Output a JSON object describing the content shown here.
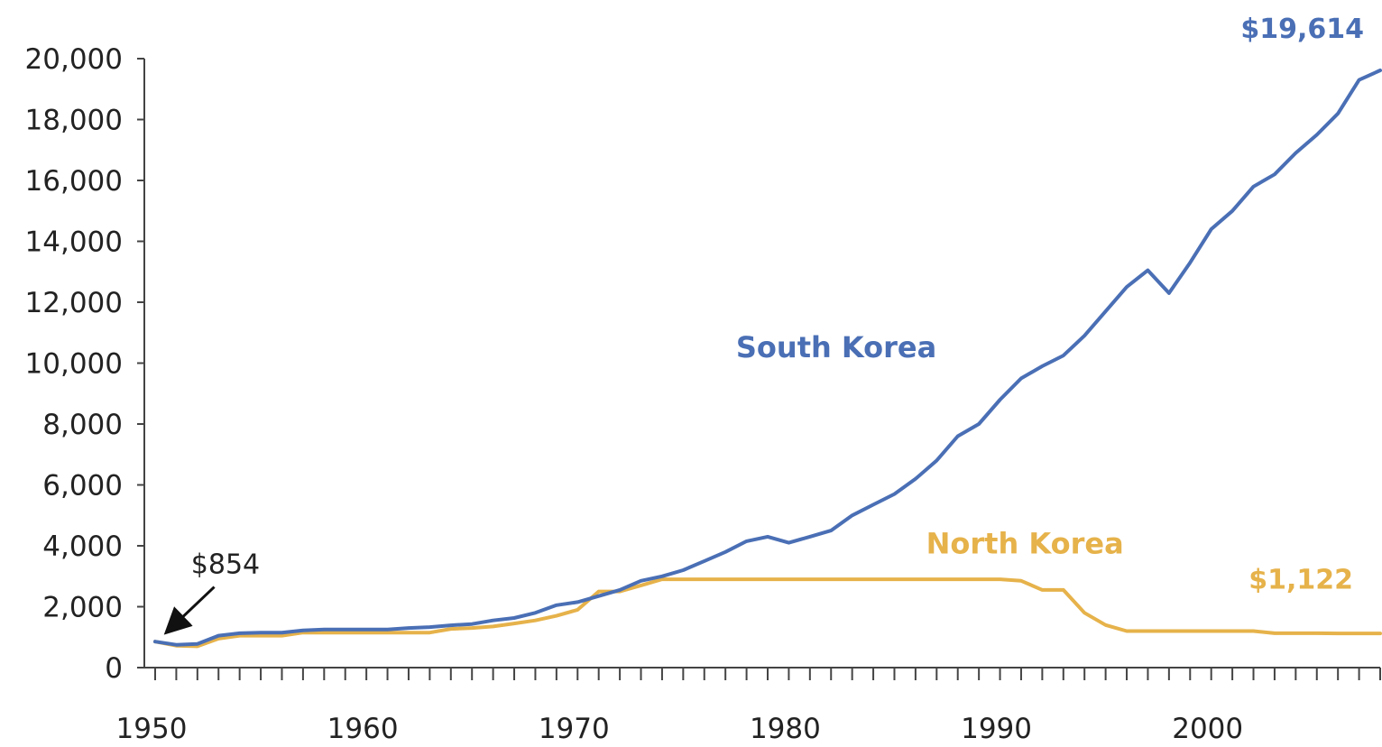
{
  "chart_data": {
    "type": "line",
    "title": "",
    "xlabel": "",
    "ylabel": "",
    "xlim": [
      1950,
      2008
    ],
    "ylim": [
      0,
      20000
    ],
    "grid": false,
    "x_ticks": [
      1950,
      1960,
      1970,
      1980,
      1990,
      2000
    ],
    "x_tick_labels": [
      "1950",
      "1960",
      "1970",
      "1980",
      "1990",
      "2000"
    ],
    "y_ticks": [
      0,
      2000,
      4000,
      6000,
      8000,
      10000,
      12000,
      14000,
      16000,
      18000,
      20000
    ],
    "y_tick_labels": [
      "0",
      "2,000",
      "4,000",
      "6,000",
      "8,000",
      "10,000",
      "12,000",
      "14,000",
      "16,000",
      "18,000",
      "20,000"
    ],
    "x": [
      1950,
      1951,
      1952,
      1953,
      1954,
      1955,
      1956,
      1957,
      1958,
      1959,
      1960,
      1961,
      1962,
      1963,
      1964,
      1965,
      1966,
      1967,
      1968,
      1969,
      1970,
      1971,
      1972,
      1973,
      1974,
      1975,
      1976,
      1977,
      1978,
      1979,
      1980,
      1981,
      1982,
      1983,
      1984,
      1985,
      1986,
      1987,
      1988,
      1989,
      1990,
      1991,
      1992,
      1993,
      1994,
      1995,
      1996,
      1997,
      1998,
      1999,
      2000,
      2001,
      2002,
      2003,
      2004,
      2005,
      2006,
      2007,
      2008
    ],
    "series": [
      {
        "name": "South Korea",
        "color": "#4a6fb5",
        "values": [
          854,
          750,
          780,
          1050,
          1130,
          1150,
          1150,
          1220,
          1250,
          1250,
          1250,
          1250,
          1300,
          1330,
          1390,
          1430,
          1550,
          1630,
          1800,
          2050,
          2150,
          2350,
          2550,
          2850,
          3000,
          3200,
          3500,
          3800,
          4150,
          4300,
          4100,
          4300,
          4500,
          5000,
          5350,
          5700,
          6200,
          6800,
          7600,
          8000,
          8800,
          9500,
          9900,
          10250,
          10900,
          11700,
          12500,
          13050,
          12300,
          13300,
          14400,
          15000,
          15800,
          16200,
          16900,
          17500,
          18200,
          19300,
          19614
        ]
      },
      {
        "name": "North Korea",
        "color": "#e6b24a",
        "values": [
          854,
          720,
          700,
          950,
          1050,
          1050,
          1050,
          1150,
          1150,
          1150,
          1150,
          1150,
          1150,
          1150,
          1270,
          1300,
          1350,
          1450,
          1550,
          1700,
          1900,
          2500,
          2500,
          2700,
          2900,
          2900,
          2900,
          2900,
          2900,
          2900,
          2900,
          2900,
          2900,
          2900,
          2900,
          2900,
          2900,
          2900,
          2900,
          2900,
          2900,
          2850,
          2550,
          2550,
          1800,
          1400,
          1200,
          1200,
          1200,
          1200,
          1200,
          1200,
          1200,
          1130,
          1130,
          1130,
          1122,
          1122,
          1122
        ]
      }
    ],
    "annotations": [
      {
        "text": "$854",
        "year": 1950,
        "value": 854,
        "color": "#222222"
      },
      {
        "text": "$19,614",
        "year": 2008,
        "value": 19614,
        "color": "#4a6fb5"
      },
      {
        "text": "$1,122",
        "year": 2008,
        "value": 1122,
        "color": "#e6b24a"
      }
    ]
  }
}
